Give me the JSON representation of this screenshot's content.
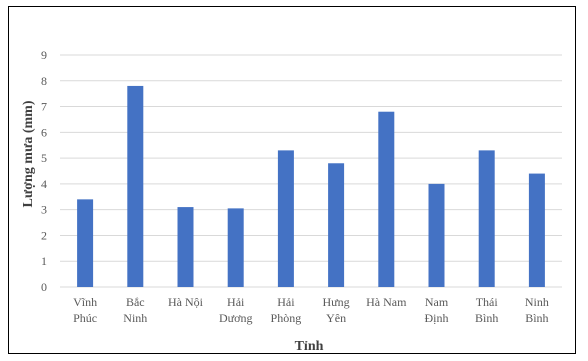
{
  "chart_data": {
    "type": "bar",
    "categories": [
      [
        "Vĩnh",
        "Phúc"
      ],
      [
        "Bắc",
        "Ninh"
      ],
      [
        "Hà Nội"
      ],
      [
        "Hải",
        "Dương"
      ],
      [
        "Hải",
        "Phòng"
      ],
      [
        "Hưng",
        "Yên"
      ],
      [
        "Hà Nam"
      ],
      [
        "Nam",
        "Định"
      ],
      [
        "Thái",
        "Bình"
      ],
      [
        "Ninh",
        "Bình"
      ]
    ],
    "values": [
      3.4,
      7.8,
      3.1,
      3.05,
      5.3,
      4.8,
      6.8,
      4.0,
      5.3,
      4.4
    ],
    "xlabel": "Tỉnh",
    "ylabel": "Lượng mưa (mm)",
    "ylim": [
      0,
      9
    ],
    "yticks": [
      0,
      1,
      2,
      3,
      4,
      5,
      6,
      7,
      8,
      9
    ],
    "grid": true,
    "bar_color": "#4472c4",
    "grid_color": "#d9d9d9"
  }
}
